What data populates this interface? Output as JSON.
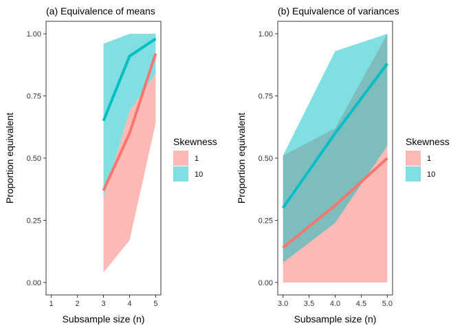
{
  "chart_data": [
    {
      "type": "line",
      "title": "(a) Equivalence of means",
      "xlabel": "Subsample size (n)",
      "ylabel": "Proportion equivalent",
      "xlim": [
        0.8,
        5.2
      ],
      "ylim": [
        -0.05,
        1.05
      ],
      "xticks": [
        1,
        2,
        3,
        4,
        5
      ],
      "xtick_labels": [
        "1",
        "2",
        "3",
        "4",
        "5"
      ],
      "yticks": [
        0,
        0.25,
        0.5,
        0.75,
        1
      ],
      "ytick_labels": [
        "0.00",
        "0.25",
        "0.50",
        "0.75",
        "1.00"
      ],
      "grid": false,
      "legend": {
        "title": "Skewness",
        "position": "right",
        "entries": [
          "1",
          "10"
        ]
      },
      "series": [
        {
          "name": "1",
          "color": "#F8766D",
          "x": [
            3,
            4,
            5
          ],
          "values": [
            0.37,
            0.6,
            0.92
          ],
          "lower": [
            0.04,
            0.17,
            0.64
          ],
          "upper": [
            0.34,
            0.69,
            0.84
          ]
        },
        {
          "name": "10",
          "color": "#00BFC4",
          "x": [
            3,
            4,
            5
          ],
          "values": [
            0.65,
            0.91,
            0.98
          ],
          "lower": [
            0.34,
            0.69,
            0.84
          ],
          "upper": [
            0.96,
            1.0,
            1.0
          ]
        }
      ]
    },
    {
      "type": "line",
      "title": "(b) Equivalence of variances",
      "xlabel": "Subsample size (n)",
      "ylabel": "Proportion equivalent",
      "xlim": [
        2.9,
        5.1
      ],
      "ylim": [
        -0.05,
        1.05
      ],
      "xticks": [
        3,
        3.5,
        4,
        4.5,
        5
      ],
      "xtick_labels": [
        "3.0",
        "3.5",
        "4.0",
        "4.5",
        "5.0"
      ],
      "yticks": [
        0,
        0.25,
        0.5,
        0.75,
        1
      ],
      "ytick_labels": [
        "0.00",
        "0.25",
        "0.50",
        "0.75",
        "1.00"
      ],
      "grid": false,
      "legend": {
        "title": "Skewness",
        "position": "right",
        "entries": [
          "1",
          "10"
        ]
      },
      "series": [
        {
          "name": "1",
          "color": "#F8766D",
          "x": [
            3,
            4,
            5
          ],
          "values": [
            0.14,
            0.31,
            0.5
          ],
          "lower": [
            0.0,
            0.0,
            0.0
          ],
          "upper": [
            0.51,
            0.62,
            1.0
          ]
        },
        {
          "name": "10",
          "color": "#00BFC4",
          "x": [
            3,
            4,
            5
          ],
          "values": [
            0.3,
            0.6,
            0.88
          ],
          "lower": [
            0.08,
            0.24,
            0.55
          ],
          "upper": [
            0.51,
            0.93,
            1.0
          ]
        }
      ]
    }
  ]
}
